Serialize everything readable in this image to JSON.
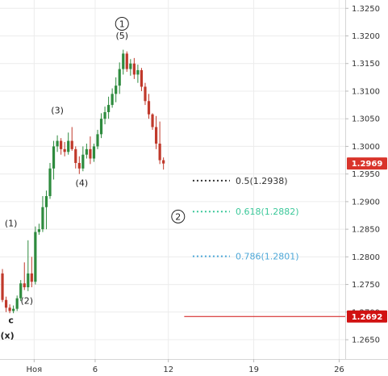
{
  "chart_data": {
    "type": "candlestick",
    "instrument_hint": "GBP/USD",
    "y_axis": {
      "position": "right",
      "ticks": [
        "1.3250",
        "1.3200",
        "1.3150",
        "1.3100",
        "1.3050",
        "1.3000",
        "1.2950",
        "1.2900",
        "1.2850",
        "1.2800",
        "1.2750",
        "1.2700",
        "1.2650"
      ],
      "ylim": [
        1.2615,
        1.3265
      ]
    },
    "x_axis": {
      "ticks": [
        {
          "label": "Ноя",
          "day": 1
        },
        {
          "label": "6",
          "day": 6
        },
        {
          "label": "12",
          "day": 12
        },
        {
          "label": "19",
          "day": 19
        },
        {
          "label": "26",
          "day": 26
        }
      ],
      "xlim": [
        -1.8,
        26.5
      ],
      "grid": true
    },
    "candles": [
      {
        "t": -1.6,
        "o": 1.277,
        "h": 1.2778,
        "l": 1.2718,
        "c": 1.2722
      },
      {
        "t": -1.3,
        "o": 1.2722,
        "h": 1.2728,
        "l": 1.27,
        "c": 1.2708
      },
      {
        "t": -1.0,
        "o": 1.2708,
        "h": 1.2714,
        "l": 1.2698,
        "c": 1.2702
      },
      {
        "t": -0.7,
        "o": 1.2702,
        "h": 1.2712,
        "l": 1.2698,
        "c": 1.2706
      },
      {
        "t": -0.4,
        "o": 1.2706,
        "h": 1.273,
        "l": 1.2702,
        "c": 1.2725
      },
      {
        "t": -0.1,
        "o": 1.2725,
        "h": 1.2758,
        "l": 1.272,
        "c": 1.2752
      },
      {
        "t": 0.2,
        "o": 1.2752,
        "h": 1.279,
        "l": 1.274,
        "c": 1.2745
      },
      {
        "t": 0.5,
        "o": 1.2745,
        "h": 1.283,
        "l": 1.2738,
        "c": 1.277
      },
      {
        "t": 0.8,
        "o": 1.277,
        "h": 1.28,
        "l": 1.2745,
        "c": 1.2755
      },
      {
        "t": 1.1,
        "o": 1.2755,
        "h": 1.2855,
        "l": 1.275,
        "c": 1.2845
      },
      {
        "t": 1.4,
        "o": 1.2845,
        "h": 1.286,
        "l": 1.284,
        "c": 1.285
      },
      {
        "t": 1.7,
        "o": 1.285,
        "h": 1.291,
        "l": 1.2845,
        "c": 1.289
      },
      {
        "t": 2.0,
        "o": 1.289,
        "h": 1.292,
        "l": 1.285,
        "c": 1.291
      },
      {
        "t": 2.3,
        "o": 1.291,
        "h": 1.297,
        "l": 1.2905,
        "c": 1.296
      },
      {
        "t": 2.6,
        "o": 1.296,
        "h": 1.301,
        "l": 1.294,
        "c": 1.3
      },
      {
        "t": 2.9,
        "o": 1.3,
        "h": 1.302,
        "l": 1.299,
        "c": 1.301
      },
      {
        "t": 3.2,
        "o": 1.301,
        "h": 1.3015,
        "l": 1.2985,
        "c": 1.2995
      },
      {
        "t": 3.5,
        "o": 1.2995,
        "h": 1.3008,
        "l": 1.2982,
        "c": 1.299
      },
      {
        "t": 3.8,
        "o": 1.299,
        "h": 1.3025,
        "l": 1.2985,
        "c": 1.301
      },
      {
        "t": 4.1,
        "o": 1.301,
        "h": 1.3035,
        "l": 1.2992,
        "c": 1.2995
      },
      {
        "t": 4.4,
        "o": 1.2995,
        "h": 1.3,
        "l": 1.296,
        "c": 1.297
      },
      {
        "t": 4.7,
        "o": 1.297,
        "h": 1.2982,
        "l": 1.295,
        "c": 1.296
      },
      {
        "t": 5.0,
        "o": 1.296,
        "h": 1.3,
        "l": 1.2955,
        "c": 1.2985
      },
      {
        "t": 5.3,
        "o": 1.2985,
        "h": 1.3005,
        "l": 1.2978,
        "c": 1.2995
      },
      {
        "t": 5.6,
        "o": 1.2995,
        "h": 1.3018,
        "l": 1.2968,
        "c": 1.2978
      },
      {
        "t": 5.9,
        "o": 1.2978,
        "h": 1.3005,
        "l": 1.2972,
        "c": 1.3
      },
      {
        "t": 6.2,
        "o": 1.3,
        "h": 1.303,
        "l": 1.2995,
        "c": 1.3022
      },
      {
        "t": 6.5,
        "o": 1.3022,
        "h": 1.306,
        "l": 1.3015,
        "c": 1.305
      },
      {
        "t": 6.8,
        "o": 1.305,
        "h": 1.3072,
        "l": 1.304,
        "c": 1.3062
      },
      {
        "t": 7.1,
        "o": 1.3062,
        "h": 1.309,
        "l": 1.305,
        "c": 1.3075
      },
      {
        "t": 7.4,
        "o": 1.3075,
        "h": 1.3105,
        "l": 1.307,
        "c": 1.3095
      },
      {
        "t": 7.7,
        "o": 1.3095,
        "h": 1.3125,
        "l": 1.308,
        "c": 1.311
      },
      {
        "t": 8.0,
        "o": 1.311,
        "h": 1.3152,
        "l": 1.3095,
        "c": 1.314
      },
      {
        "t": 8.3,
        "o": 1.314,
        "h": 1.3175,
        "l": 1.313,
        "c": 1.3168
      },
      {
        "t": 8.6,
        "o": 1.3168,
        "h": 1.3172,
        "l": 1.3135,
        "c": 1.314
      },
      {
        "t": 8.9,
        "o": 1.314,
        "h": 1.3158,
        "l": 1.3128,
        "c": 1.315
      },
      {
        "t": 9.2,
        "o": 1.315,
        "h": 1.316,
        "l": 1.3122,
        "c": 1.313
      },
      {
        "t": 9.5,
        "o": 1.313,
        "h": 1.3148,
        "l": 1.3115,
        "c": 1.3138
      },
      {
        "t": 9.8,
        "o": 1.3138,
        "h": 1.3142,
        "l": 1.31,
        "c": 1.3108
      },
      {
        "t": 10.1,
        "o": 1.3108,
        "h": 1.3115,
        "l": 1.3075,
        "c": 1.3082
      },
      {
        "t": 10.4,
        "o": 1.3082,
        "h": 1.3095,
        "l": 1.305,
        "c": 1.3058
      },
      {
        "t": 10.7,
        "o": 1.3058,
        "h": 1.306,
        "l": 1.303,
        "c": 1.3035
      },
      {
        "t": 11.0,
        "o": 1.3035,
        "h": 1.3055,
        "l": 1.2995,
        "c": 1.3005
      },
      {
        "t": 11.3,
        "o": 1.3005,
        "h": 1.3045,
        "l": 1.2968,
        "c": 1.2975
      },
      {
        "t": 11.6,
        "o": 1.2975,
        "h": 1.298,
        "l": 1.2958,
        "c": 1.2969
      }
    ],
    "wave_labels": [
      {
        "text": "c",
        "t": -0.9,
        "y": 1.268,
        "color": "#c00000",
        "bold": true
      },
      {
        "text": "(x)",
        "t": -1.2,
        "y": 1.2652,
        "color": "#222222",
        "bold": true
      },
      {
        "text": "(1)",
        "t": -0.9,
        "y": 1.2855,
        "color": "#222222",
        "bold": false
      },
      {
        "text": "(2)",
        "t": 0.4,
        "y": 1.2715,
        "color": "#222222",
        "bold": false
      },
      {
        "text": "(3)",
        "t": 2.9,
        "y": 1.306,
        "color": "#222222",
        "bold": false
      },
      {
        "text": "(4)",
        "t": 4.9,
        "y": 1.2928,
        "color": "#222222",
        "bold": false
      },
      {
        "text": "(5)",
        "t": 8.2,
        "y": 1.3195,
        "color": "#222222",
        "bold": false
      }
    ],
    "circled_labels": [
      {
        "text": "1",
        "t": 8.2,
        "y": 1.3222
      },
      {
        "text": "2",
        "t": 12.8,
        "y": 1.2873
      }
    ],
    "fib_levels": [
      {
        "label": "0.5(1.2938)",
        "value": 1.2938,
        "color": "#333333",
        "t_start": 14.0,
        "t_end": 16.8
      },
      {
        "label": "0.618(1.2882)",
        "value": 1.2882,
        "color": "#3cc89a",
        "t_start": 14.0,
        "t_end": 16.8
      },
      {
        "label": "0.786(1.2801)",
        "value": 1.2801,
        "color": "#4ea8d8",
        "t_start": 14.0,
        "t_end": 16.8
      }
    ],
    "horizontal_line": {
      "value": 1.2692,
      "color": "#d11111",
      "t_start": 13.3
    },
    "price_badges": [
      {
        "text": "1.2969",
        "value": 1.2969,
        "color": "#d9342b"
      },
      {
        "text": "1.2692",
        "value": 1.2692,
        "color": "#d11111"
      }
    ],
    "colors": {
      "up": "#2e8b3e",
      "down": "#c0392b",
      "grid": "#ececec",
      "axis_text": "#333333"
    }
  }
}
